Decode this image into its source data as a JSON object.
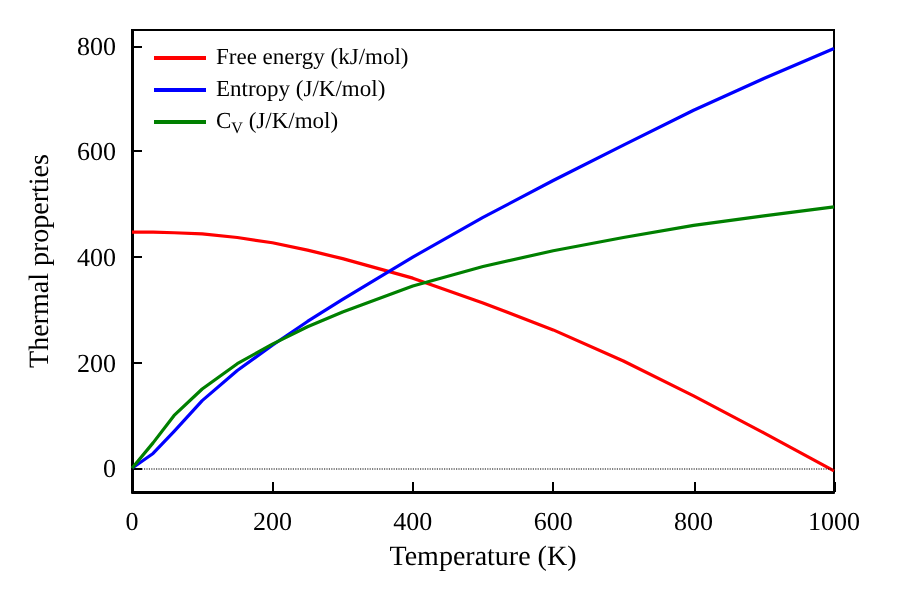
{
  "chart_data": {
    "type": "line",
    "xlabel": "Temperature (K)",
    "ylabel": "Thermal properties",
    "x": [
      0,
      30,
      60,
      100,
      150,
      200,
      250,
      300,
      400,
      500,
      600,
      700,
      800,
      900,
      1000
    ],
    "series": [
      {
        "name": "Free energy (kJ/mol)",
        "color": "#ff0000",
        "values": [
          447,
          447,
          446,
          444,
          437,
          427,
          413,
          397,
          360,
          313,
          262,
          203,
          137,
          67,
          -5
        ]
      },
      {
        "name": "Entropy (J/K/mol)",
        "color": "#0000ff",
        "values": [
          0,
          28,
          70,
          128,
          185,
          233,
          278,
          320,
          400,
          475,
          545,
          612,
          678,
          738,
          795
        ]
      },
      {
        "name": "C$_{V}$ (J/K/mol)",
        "color": "#008000",
        "values": [
          0,
          48,
          100,
          150,
          198,
          235,
          268,
          296,
          345,
          382,
          412,
          437,
          460,
          478,
          495
        ]
      }
    ],
    "xlim": [
      0,
      1000
    ],
    "xticks": [
      0,
      200,
      400,
      600,
      800,
      1000
    ],
    "ylim": [
      -45,
      830
    ],
    "yticks": [
      0,
      200,
      400,
      600,
      800
    ],
    "ref_lines": [
      {
        "axis": "y",
        "value": 0,
        "color": "#000000",
        "line_style": "dotted"
      }
    ],
    "grid": false,
    "legend": "top left",
    "marker": "none",
    "line_style": "solid"
  }
}
